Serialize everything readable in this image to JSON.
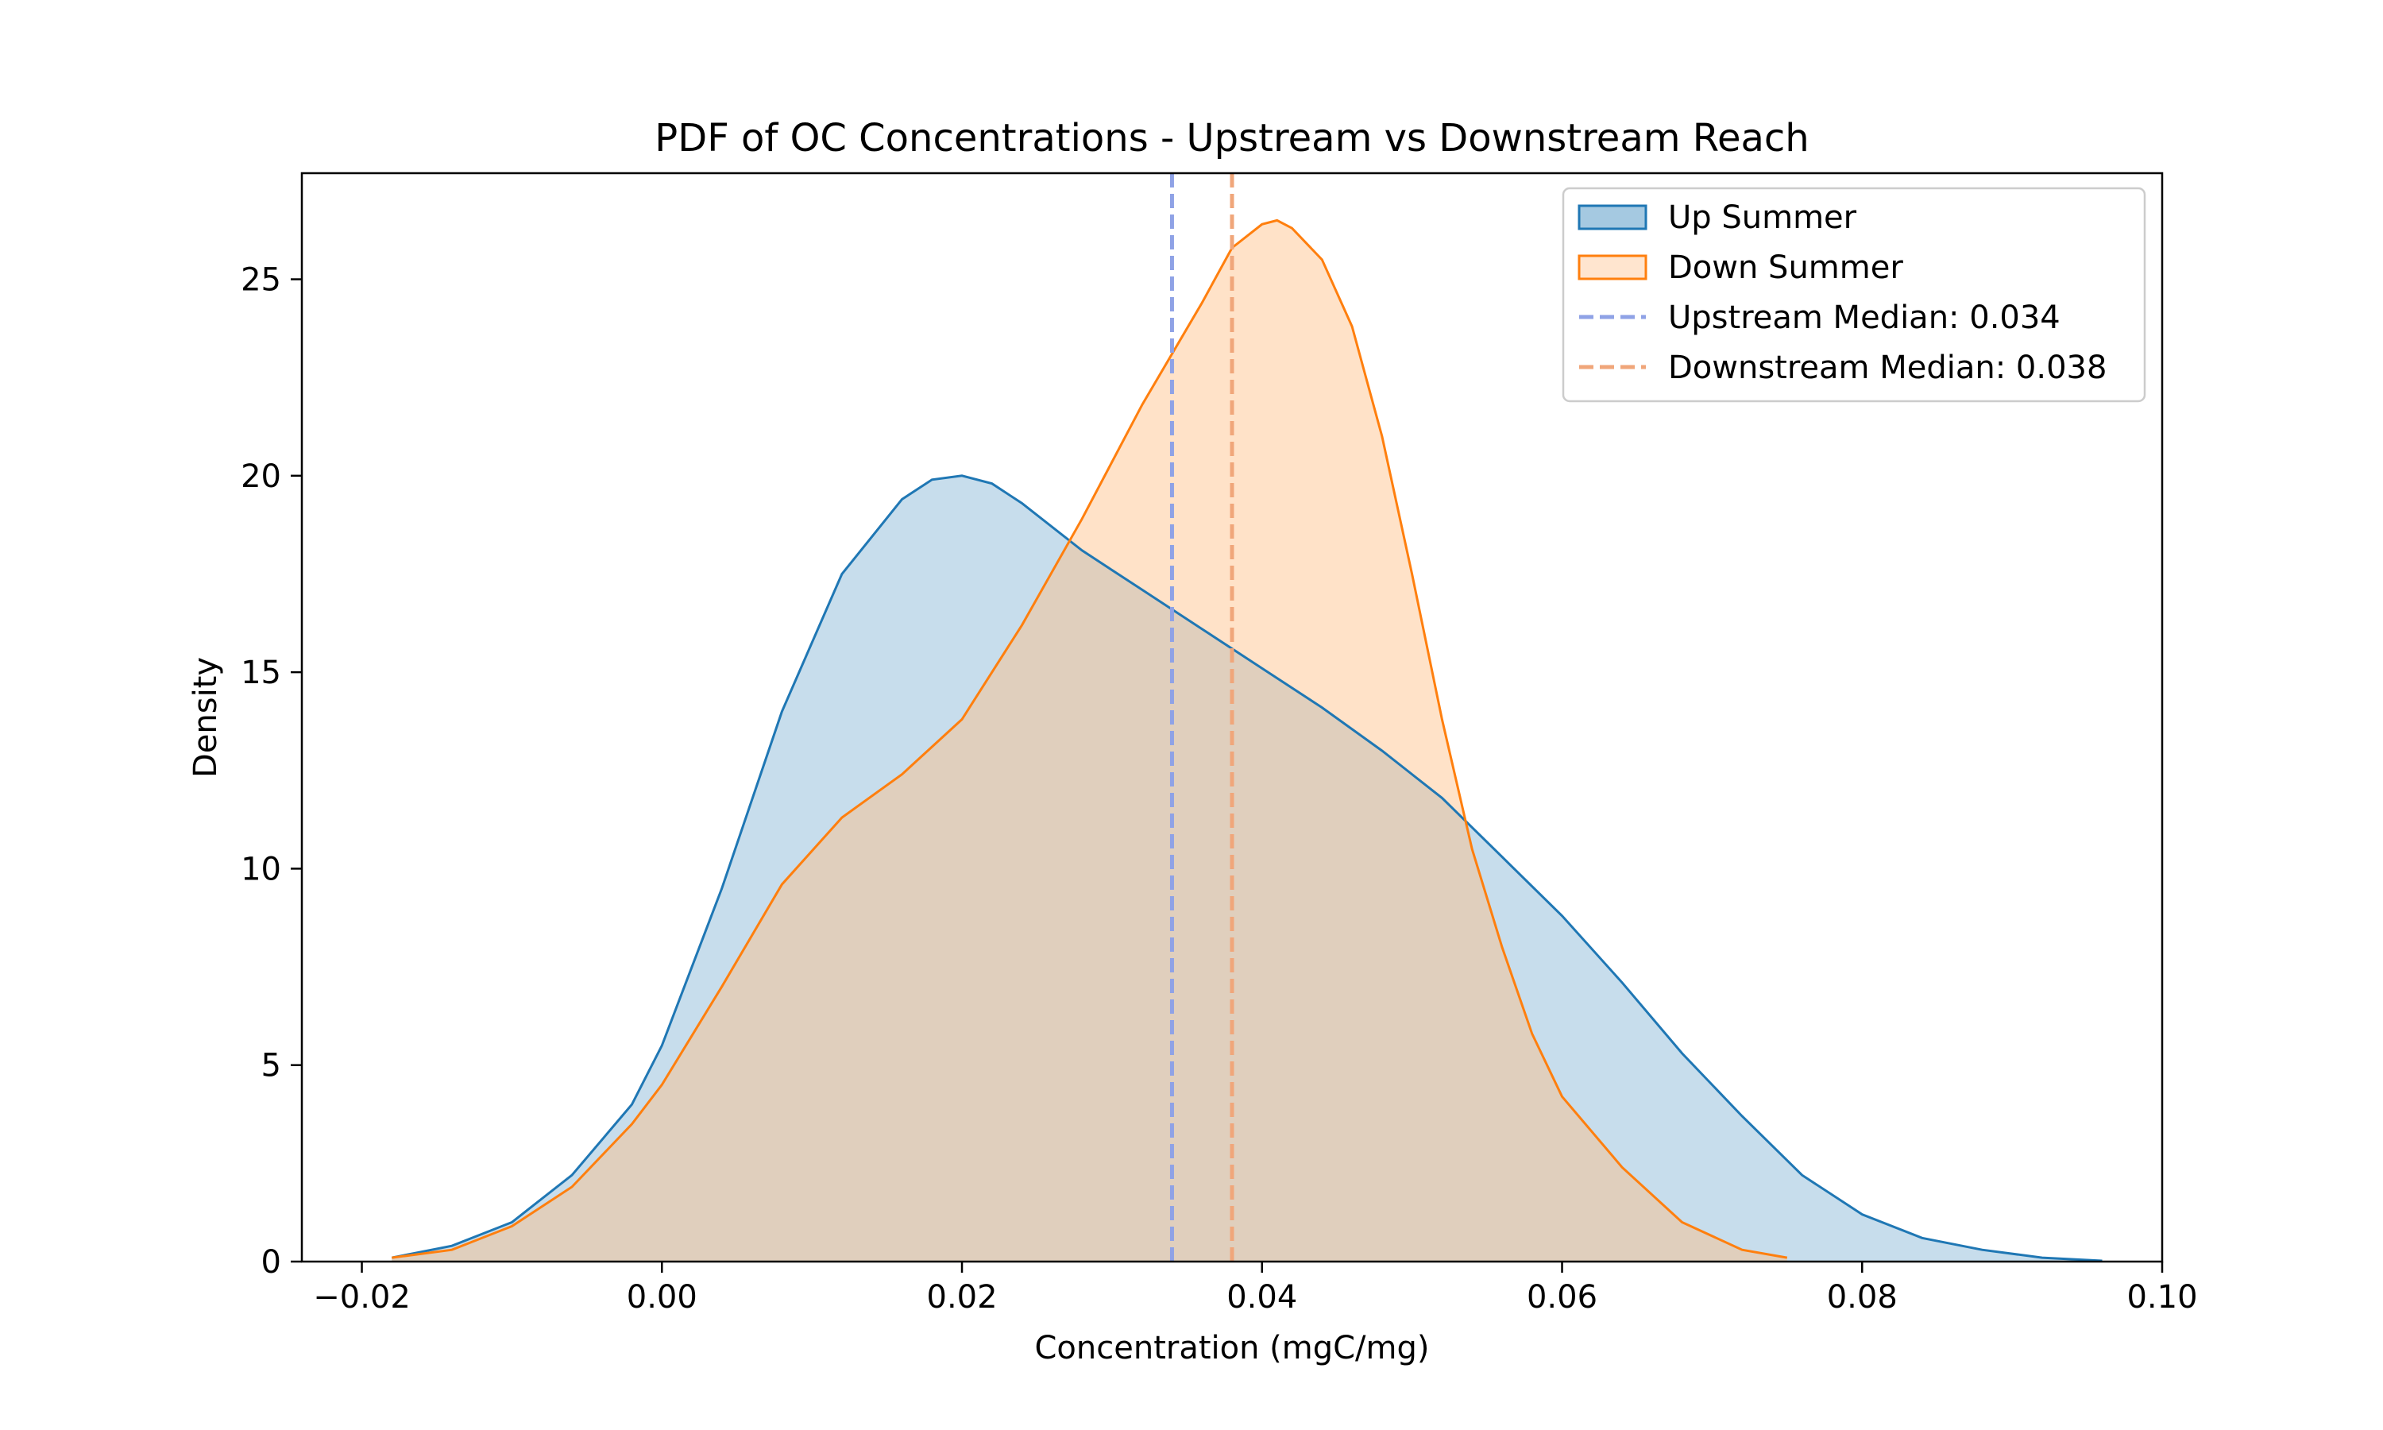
{
  "chart_data": {
    "type": "area",
    "title": "PDF of OC Concentrations - Upstream vs Downstream Reach",
    "xlabel": "Concentration (mgC/mg)",
    "ylabel": "Density",
    "xlim": [
      -0.024,
      0.1
    ],
    "ylim": [
      0,
      27.7
    ],
    "xticks": [
      -0.02,
      0.0,
      0.02,
      0.04,
      0.06,
      0.08,
      0.1
    ],
    "xtick_labels": [
      "−0.02",
      "0.00",
      "0.02",
      "0.04",
      "0.06",
      "0.08",
      "0.10"
    ],
    "yticks": [
      0,
      5,
      10,
      15,
      20,
      25
    ],
    "ytick_labels": [
      "0",
      "5",
      "10",
      "15",
      "20",
      "25"
    ],
    "grid": false,
    "legend_position": "top-right",
    "series": [
      {
        "name": "Up Summer",
        "color": "#1f77b4",
        "fill": "#1f77b4",
        "x": [
          -0.018,
          -0.014,
          -0.01,
          -0.006,
          -0.002,
          0.0,
          0.004,
          0.008,
          0.012,
          0.016,
          0.018,
          0.02,
          0.022,
          0.024,
          0.028,
          0.032,
          0.036,
          0.04,
          0.044,
          0.048,
          0.052,
          0.056,
          0.06,
          0.064,
          0.068,
          0.072,
          0.076,
          0.08,
          0.084,
          0.088,
          0.092,
          0.096
        ],
        "values": [
          0.1,
          0.4,
          1.0,
          2.2,
          4.0,
          5.5,
          9.5,
          14.0,
          17.5,
          19.4,
          19.9,
          20.0,
          19.8,
          19.3,
          18.1,
          17.1,
          16.1,
          15.1,
          14.1,
          13.0,
          11.8,
          10.3,
          8.8,
          7.1,
          5.3,
          3.7,
          2.2,
          1.2,
          0.6,
          0.3,
          0.1,
          0.02
        ]
      },
      {
        "name": "Down Summer",
        "color": "#ff7f0e",
        "fill": "#ffbf86",
        "x": [
          -0.018,
          -0.014,
          -0.01,
          -0.006,
          -0.002,
          0.0,
          0.004,
          0.008,
          0.012,
          0.016,
          0.02,
          0.024,
          0.028,
          0.032,
          0.036,
          0.038,
          0.04,
          0.041,
          0.042,
          0.044,
          0.046,
          0.048,
          0.05,
          0.052,
          0.054,
          0.056,
          0.058,
          0.06,
          0.064,
          0.068,
          0.072,
          0.075
        ],
        "values": [
          0.1,
          0.3,
          0.9,
          1.9,
          3.5,
          4.5,
          7.0,
          9.6,
          11.3,
          12.4,
          13.8,
          16.2,
          18.9,
          21.8,
          24.4,
          25.8,
          26.4,
          26.5,
          26.3,
          25.5,
          23.8,
          21.0,
          17.5,
          13.8,
          10.5,
          8.0,
          5.8,
          4.2,
          2.4,
          1.0,
          0.3,
          0.1
        ]
      }
    ],
    "medians": [
      {
        "name": "Upstream Median: 0.034",
        "value": 0.034,
        "color": "#8fa2e6"
      },
      {
        "name": "Downstream Median: 0.038",
        "value": 0.038,
        "color": "#f0a67a"
      }
    ]
  }
}
